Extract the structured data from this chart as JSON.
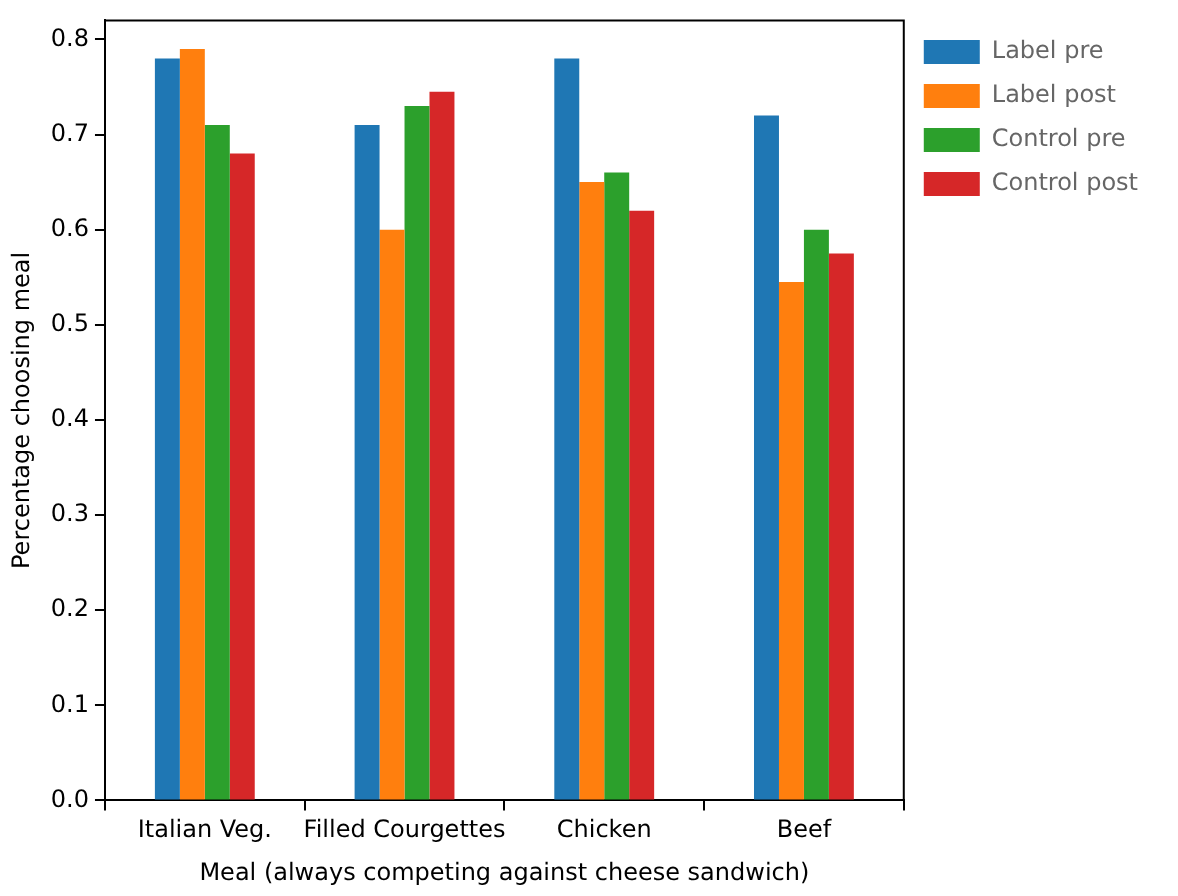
{
  "chart_data": {
    "type": "bar",
    "xlabel": "Meal (always competing against cheese sandwich)",
    "ylabel": "Percentage choosing meal",
    "categories": [
      "Italian Veg.",
      "Filled Courgettes",
      "Chicken",
      "Beef"
    ],
    "series": [
      {
        "name": "Label pre",
        "color": "#1f77b4",
        "values": [
          0.78,
          0.71,
          0.78,
          0.72
        ]
      },
      {
        "name": "Label post",
        "color": "#ff7f0e",
        "values": [
          0.79,
          0.6,
          0.65,
          0.545
        ]
      },
      {
        "name": "Control pre",
        "color": "#2ca02c",
        "values": [
          0.71,
          0.73,
          0.66,
          0.6
        ]
      },
      {
        "name": "Control post",
        "color": "#d62728",
        "values": [
          0.68,
          0.745,
          0.62,
          0.575
        ]
      }
    ],
    "ylim": [
      0,
      0.82
    ],
    "yticks": [
      {
        "value": 0,
        "label": "0.0"
      },
      0.1,
      0.2,
      0.3,
      0.4,
      0.5,
      0.6,
      0.7,
      0.8
    ],
    "grid": false,
    "legend": "right"
  }
}
